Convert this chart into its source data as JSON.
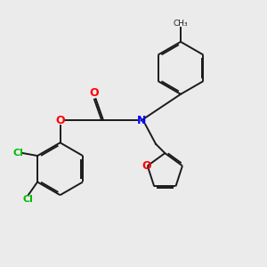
{
  "background_color": "#ebebeb",
  "bond_color": "#1a1a1a",
  "N_color": "#0000ff",
  "O_color": "#ff0000",
  "Cl_color": "#00bb00",
  "line_width": 1.4,
  "dbo": 0.06,
  "xlim": [
    0,
    10
  ],
  "ylim": [
    0,
    10
  ]
}
